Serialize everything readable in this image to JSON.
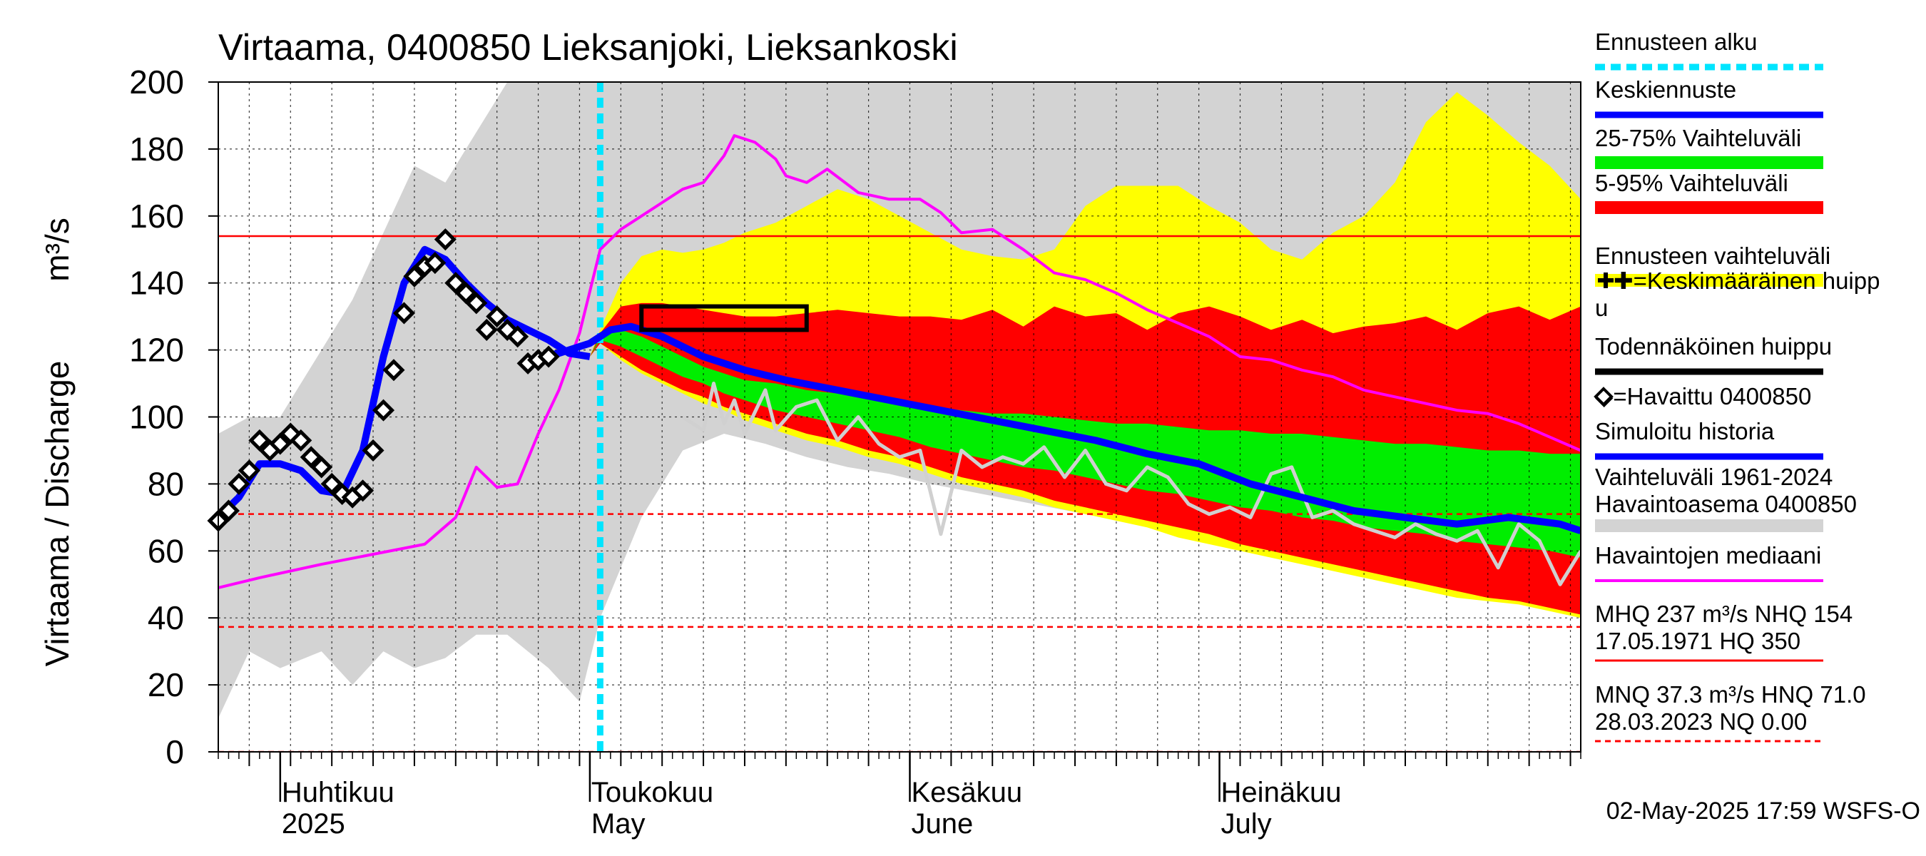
{
  "chart_data": {
    "type": "area",
    "title": "Virtaama, 0400850 Lieksanjoki, Lieksankoski",
    "ylabel": "Virtaama / Discharge",
    "yunit": "m³/s",
    "ylim": [
      0,
      200
    ],
    "yticks": [
      0,
      20,
      40,
      60,
      80,
      100,
      120,
      140,
      160,
      180,
      200
    ],
    "xlim": [
      "2025-03-26",
      "2025-08-05"
    ],
    "grid": true,
    "legend_position": "right",
    "month_labels": [
      {
        "top": "Huhtikuu",
        "bottom": "2025",
        "x": "2025-04-01"
      },
      {
        "top": "Toukokuu",
        "bottom": "May",
        "x": "2025-05-01"
      },
      {
        "top": "Kesäkuu",
        "bottom": "June",
        "x": "2025-06-01"
      },
      {
        "top": "Heinäkuu",
        "bottom": "July",
        "x": "2025-07-01"
      }
    ],
    "forecast_start": "2025-05-02",
    "reference_lines": [
      {
        "name": "NHQ",
        "value": 154,
        "style": "solid",
        "color": "#ff0000"
      },
      {
        "name": "HNQ",
        "value": 71.0,
        "style": "dashed",
        "color": "#ff0000"
      },
      {
        "name": "MNQ",
        "value": 37.3,
        "style": "dashed",
        "color": "#ff0000"
      },
      {
        "name": "NQ",
        "value": 0.0,
        "style": "dashed",
        "color": "#ff0000"
      }
    ],
    "probable_peak_box": {
      "x": [
        "2025-05-06",
        "2025-05-22"
      ],
      "y": [
        126,
        133
      ]
    },
    "bands": {
      "x": [
        "2025-04-26",
        "2025-05-01",
        "2025-05-02",
        "2025-05-04",
        "2025-05-06",
        "2025-05-08",
        "2025-05-10",
        "2025-05-12",
        "2025-05-14",
        "2025-05-16",
        "2025-05-19",
        "2025-05-22",
        "2025-05-25",
        "2025-05-28",
        "2025-05-31",
        "2025-06-03",
        "2025-06-06",
        "2025-06-09",
        "2025-06-12",
        "2025-06-15",
        "2025-06-18",
        "2025-06-21",
        "2025-06-24",
        "2025-06-27",
        "2025-06-30",
        "2025-07-03",
        "2025-07-06",
        "2025-07-09",
        "2025-07-12",
        "2025-07-15",
        "2025-07-18",
        "2025-07-21",
        "2025-07-24",
        "2025-07-27",
        "2025-07-30",
        "2025-08-02",
        "2025-08-05"
      ],
      "envelope_hi": [
        118,
        118,
        126,
        140,
        148,
        150,
        149,
        150,
        152,
        155,
        158,
        163,
        168,
        165,
        160,
        155,
        150,
        148,
        147,
        150,
        163,
        169,
        169,
        169,
        163,
        158,
        150,
        147,
        155,
        160,
        170,
        188,
        197,
        190,
        182,
        175,
        165
      ],
      "p95": [
        118,
        118,
        125,
        133,
        134,
        134,
        133,
        132,
        131,
        130,
        130,
        131,
        132,
        131,
        130,
        130,
        129,
        132,
        127,
        133,
        130,
        131,
        126,
        131,
        133,
        130,
        126,
        129,
        125,
        127,
        128,
        130,
        126,
        131,
        133,
        129,
        133
      ],
      "p75": [
        118,
        118,
        124,
        126,
        124,
        121,
        118,
        115,
        113,
        111,
        110,
        108,
        107,
        106,
        104,
        103,
        102,
        101,
        101,
        100,
        99,
        98,
        98,
        97,
        96,
        96,
        95,
        95,
        94,
        93,
        92,
        92,
        91,
        90,
        90,
        89,
        89
      ],
      "p25": [
        118,
        118,
        123,
        121,
        118,
        115,
        112,
        110,
        107,
        105,
        102,
        100,
        98,
        96,
        94,
        91,
        89,
        87,
        85,
        84,
        82,
        80,
        78,
        77,
        75,
        73,
        72,
        70,
        69,
        67,
        66,
        65,
        63,
        62,
        61,
        60,
        58
      ],
      "p5": [
        118,
        118,
        122,
        118,
        114,
        111,
        108,
        106,
        103,
        101,
        98,
        95,
        93,
        90,
        88,
        85,
        82,
        80,
        78,
        75,
        73,
        71,
        69,
        67,
        65,
        62,
        60,
        58,
        56,
        54,
        52,
        50,
        48,
        46,
        45,
        43,
        41
      ],
      "envelope_lo": [
        118,
        118,
        122,
        117,
        113,
        110,
        107,
        104,
        102,
        99,
        96,
        93,
        91,
        88,
        86,
        83,
        80,
        78,
        76,
        73,
        71,
        69,
        67,
        64,
        62,
        60,
        58,
        56,
        54,
        52,
        50,
        48,
        46,
        45,
        44,
        42,
        40
      ]
    },
    "series": [
      {
        "name": "Keskiennuste",
        "color": "#0000ff",
        "x": [
          "2025-04-26",
          "2025-04-28",
          "2025-05-01",
          "2025-05-03",
          "2025-05-05",
          "2025-05-08",
          "2025-05-12",
          "2025-05-16",
          "2025-05-20",
          "2025-05-25",
          "2025-05-30",
          "2025-06-04",
          "2025-06-09",
          "2025-06-14",
          "2025-06-19",
          "2025-06-24",
          "2025-06-29",
          "2025-07-04",
          "2025-07-09",
          "2025-07-14",
          "2025-07-19",
          "2025-07-24",
          "2025-07-29",
          "2025-08-03",
          "2025-08-05"
        ],
        "y": [
          118,
          119,
          122,
          126,
          127,
          124,
          118,
          114,
          111,
          108,
          105,
          102,
          99,
          96,
          93,
          89,
          86,
          80,
          76,
          72,
          70,
          68,
          70,
          68,
          66
        ]
      },
      {
        "name": "Simuloitu historia",
        "color": "#0000ff",
        "x": [
          "2025-03-26",
          "2025-03-28",
          "2025-03-30",
          "2025-04-01",
          "2025-04-03",
          "2025-04-05",
          "2025-04-07",
          "2025-04-09",
          "2025-04-11",
          "2025-04-13",
          "2025-04-15",
          "2025-04-17",
          "2025-04-19",
          "2025-04-21",
          "2025-04-23",
          "2025-04-25",
          "2025-04-27",
          "2025-04-29",
          "2025-05-01"
        ],
        "y": [
          70,
          76,
          86,
          86,
          84,
          78,
          77,
          90,
          118,
          140,
          150,
          147,
          140,
          134,
          129,
          126,
          123,
          119,
          118
        ]
      },
      {
        "name": "Havaitut (harmaa)",
        "color": "#d0d0d0",
        "x": [
          "2025-05-10",
          "2025-05-12",
          "2025-05-13",
          "2025-05-14",
          "2025-05-15",
          "2025-05-16",
          "2025-05-18",
          "2025-05-19",
          "2025-05-21",
          "2025-05-23",
          "2025-05-25",
          "2025-05-27",
          "2025-05-29",
          "2025-05-31",
          "2025-06-02",
          "2025-06-04",
          "2025-06-06",
          "2025-06-08",
          "2025-06-10",
          "2025-06-12",
          "2025-06-14",
          "2025-06-16",
          "2025-06-18",
          "2025-06-20",
          "2025-06-22",
          "2025-06-24",
          "2025-06-26",
          "2025-06-28",
          "2025-06-30",
          "2025-07-02",
          "2025-07-04",
          "2025-07-06",
          "2025-07-08",
          "2025-07-10",
          "2025-07-12",
          "2025-07-14",
          "2025-07-16",
          "2025-07-18",
          "2025-07-20",
          "2025-07-22",
          "2025-07-24",
          "2025-07-26",
          "2025-07-28",
          "2025-07-30",
          "2025-08-01",
          "2025-08-03",
          "2025-08-05"
        ],
        "y": [
          100,
          96,
          110,
          98,
          105,
          95,
          108,
          96,
          103,
          105,
          93,
          100,
          92,
          88,
          90,
          65,
          90,
          85,
          88,
          86,
          91,
          82,
          90,
          80,
          78,
          85,
          82,
          74,
          71,
          73,
          70,
          83,
          85,
          70,
          72,
          68,
          66,
          64,
          68,
          65,
          63,
          66,
          55,
          68,
          63,
          50,
          60
        ]
      },
      {
        "name": "Havaintojen mediaani",
        "color": "#ff00ff",
        "x": [
          "2025-03-26",
          "2025-03-30",
          "2025-04-05",
          "2025-04-10",
          "2025-04-15",
          "2025-04-18",
          "2025-04-20",
          "2025-04-22",
          "2025-04-24",
          "2025-04-26",
          "2025-04-28",
          "2025-04-30",
          "2025-05-02",
          "2025-05-04",
          "2025-05-06",
          "2025-05-08",
          "2025-05-10",
          "2025-05-12",
          "2025-05-14",
          "2025-05-15",
          "2025-05-17",
          "2025-05-19",
          "2025-05-20",
          "2025-05-22",
          "2025-05-24",
          "2025-05-27",
          "2025-05-30",
          "2025-06-02",
          "2025-06-04",
          "2025-06-06",
          "2025-06-09",
          "2025-06-12",
          "2025-06-15",
          "2025-06-18",
          "2025-06-21",
          "2025-06-24",
          "2025-06-27",
          "2025-06-30",
          "2025-07-03",
          "2025-07-06",
          "2025-07-09",
          "2025-07-12",
          "2025-07-15",
          "2025-07-18",
          "2025-07-21",
          "2025-07-24",
          "2025-07-27",
          "2025-07-30",
          "2025-08-02",
          "2025-08-05"
        ],
        "y": [
          49,
          52,
          56,
          59,
          62,
          70,
          85,
          79,
          80,
          95,
          108,
          125,
          150,
          156,
          160,
          164,
          168,
          170,
          178,
          184,
          182,
          177,
          172,
          170,
          174,
          167,
          165,
          165,
          161,
          155,
          156,
          150,
          143,
          141,
          137,
          132,
          128,
          124,
          118,
          117,
          114,
          112,
          108,
          106,
          104,
          102,
          101,
          98,
          94,
          90
        ]
      }
    ],
    "observed": {
      "name": "Havaittu 0400850",
      "x": [
        "2025-03-26",
        "2025-03-27",
        "2025-03-28",
        "2025-03-29",
        "2025-03-30",
        "2025-03-31",
        "2025-04-01",
        "2025-04-02",
        "2025-04-03",
        "2025-04-04",
        "2025-04-05",
        "2025-04-06",
        "2025-04-07",
        "2025-04-08",
        "2025-04-09",
        "2025-04-10",
        "2025-04-11",
        "2025-04-12",
        "2025-04-13",
        "2025-04-14",
        "2025-04-15",
        "2025-04-16",
        "2025-04-17",
        "2025-04-18",
        "2025-04-19",
        "2025-04-20",
        "2025-04-21",
        "2025-04-22",
        "2025-04-23",
        "2025-04-24",
        "2025-04-25",
        "2025-04-26",
        "2025-04-27"
      ],
      "y": [
        69,
        72,
        80,
        84,
        93,
        90,
        92,
        95,
        93,
        88,
        85,
        80,
        77,
        76,
        78,
        90,
        102,
        114,
        131,
        142,
        145,
        146,
        153,
        140,
        137,
        134,
        126,
        130,
        126,
        124,
        116,
        117,
        118
      ]
    },
    "legend": [
      {
        "label": "Ennusteen alku",
        "color": "#00e5ff",
        "style": "dashed"
      },
      {
        "label": "Keskiennuste",
        "color": "#0000ff",
        "style": "solid"
      },
      {
        "label": "25-75% Vaihteluväli",
        "color": "#00ee00",
        "style": "band"
      },
      {
        "label": "5-95% Vaihteluväli",
        "color": "#ff0000",
        "style": "band"
      },
      {
        "label": "Ennusteen vaihteluväli",
        "color": "#ffff00",
        "style": "band"
      },
      {
        "label": "✚=Keskimääräinen huipp",
        "label2": "u",
        "color": "",
        "style": "none"
      },
      {
        "label": "Todennäköinen huippu",
        "color": "#000000",
        "style": "solid"
      },
      {
        "label": "◇=Havaittu 0400850",
        "color": "",
        "style": "none"
      },
      {
        "label": "Simuloitu historia",
        "color": "#0000ff",
        "style": "solid"
      },
      {
        "label": "Vaihteluväli 1961-2024",
        "label2": " Havaintoasema 0400850",
        "color": "#d3d3d3",
        "style": "band"
      },
      {
        "label": "Havaintojen mediaani",
        "color": "#ff00ff",
        "style": "solid"
      }
    ],
    "stats": [
      {
        "line1": "MHQ  237 m³/s NHQ  154",
        "line2": "17.05.1971 HQ  350"
      },
      {
        "line1": "MNQ 37.3 m³/s HNQ 71.0",
        "line2": "28.03.2023 NQ 0.00"
      }
    ],
    "timestamp": "02-May-2025 17:59 WSFS-O"
  }
}
